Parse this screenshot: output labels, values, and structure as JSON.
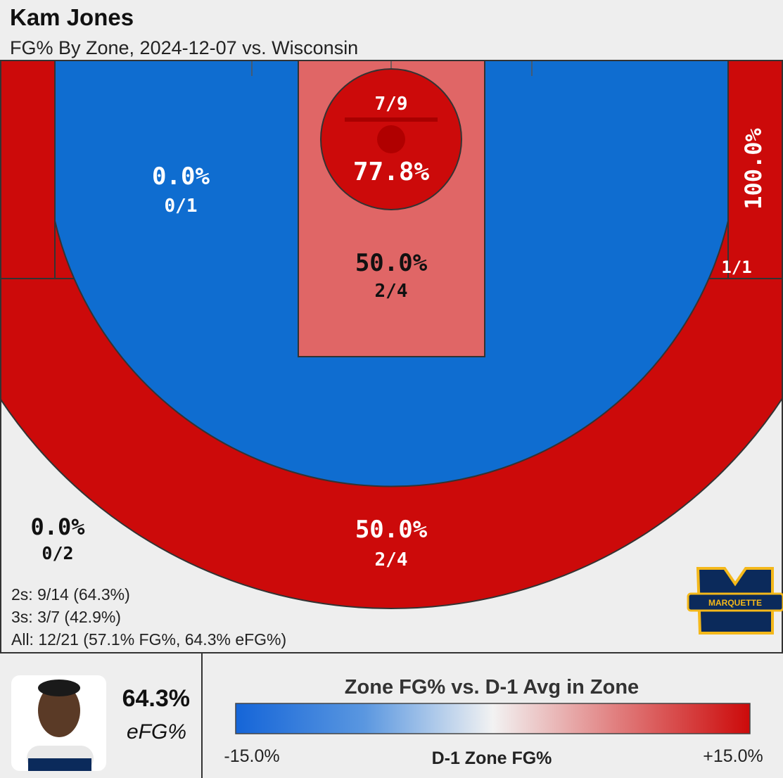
{
  "header": {
    "title": "Kam Jones",
    "subtitle": "FG% By Zone, 2024-12-07 vs. Wisconsin"
  },
  "zones": [
    {
      "name": "restricted-area",
      "pct": "77.8%",
      "made": "7/9"
    },
    {
      "name": "paint",
      "pct": "50.0%",
      "made": "2/4"
    },
    {
      "name": "midrange",
      "pct": "0.0%",
      "made": "0/1"
    },
    {
      "name": "right-corner-three",
      "pct": "100.0%",
      "made": "1/1"
    },
    {
      "name": "left-corner-three",
      "pct": "0.0%",
      "made": "0/2"
    },
    {
      "name": "above-break-three",
      "pct": "50.0%",
      "made": "2/4"
    }
  ],
  "summary": [
    "2s: 9/14 (64.3%)",
    "3s: 3/7 (42.9%)",
    "All: 12/21 (57.1% FG%, 64.3% eFG%)"
  ],
  "logo": {
    "text": "MARQUETTE"
  },
  "player": {
    "efg": "64.3%",
    "efg_label": "eFG%"
  },
  "legend": {
    "title": "Zone FG% vs. D-1 Avg in Zone",
    "low": "-15.0%",
    "mid": "D-1 Zone FG%",
    "high": "+15.0%"
  }
}
